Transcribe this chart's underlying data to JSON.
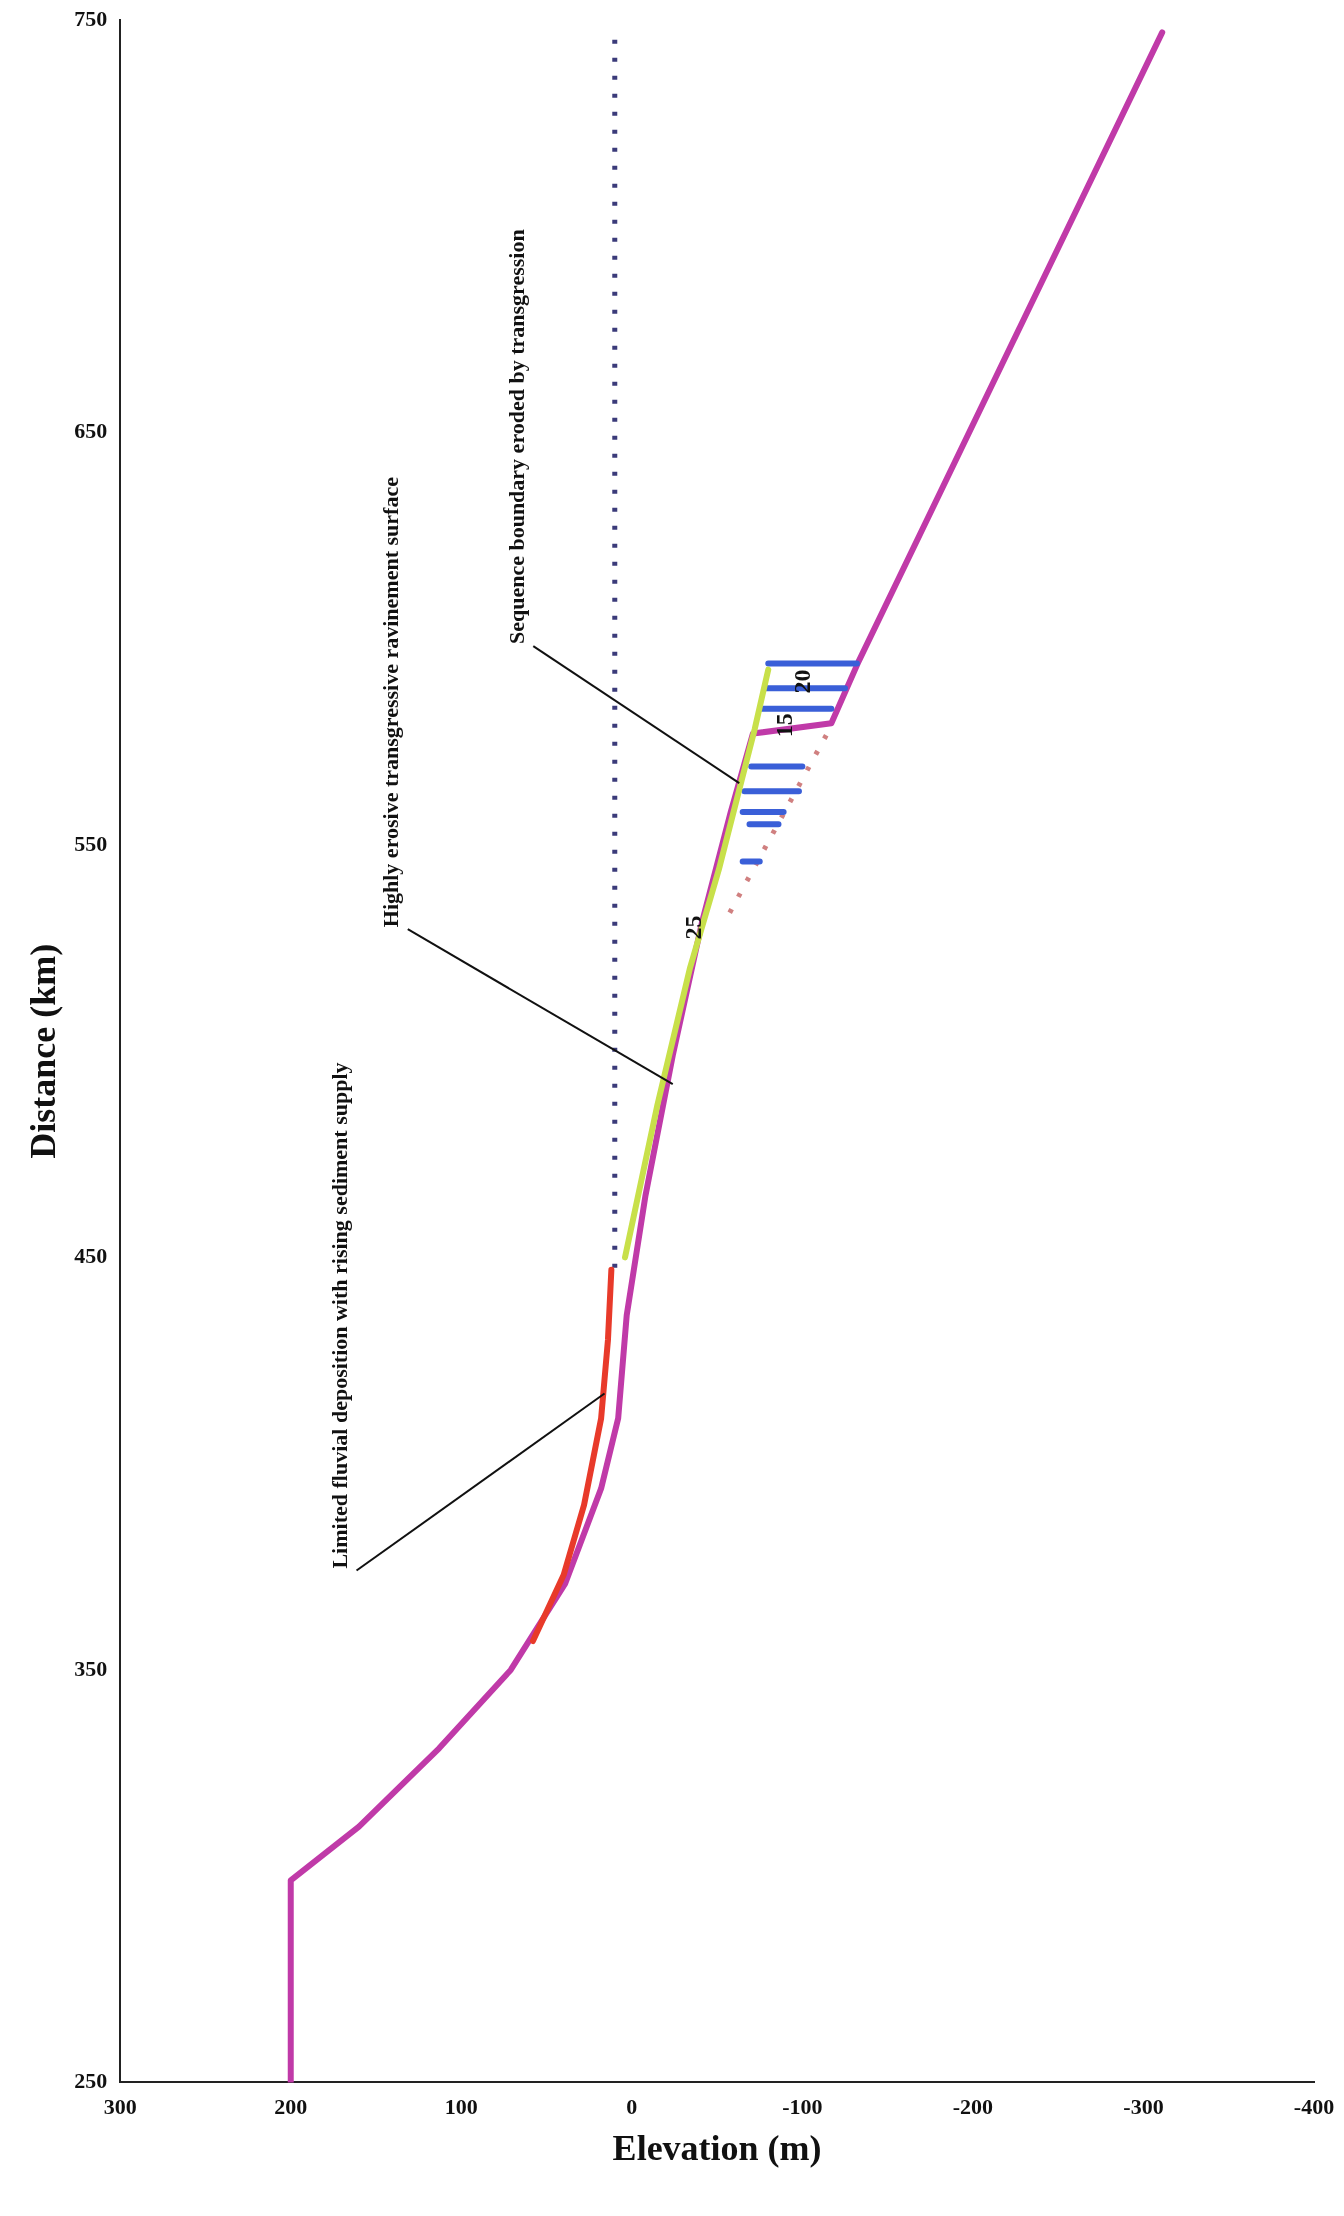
{
  "chart_data": {
    "type": "line",
    "xlabel": "Elevation (m)",
    "ylabel": "Distance (km)",
    "xlim": [
      300,
      -400
    ],
    "xticks": [
      300,
      200,
      100,
      0,
      -100,
      -200,
      -300,
      -400
    ],
    "ylim": [
      250,
      750
    ],
    "yticks": [
      250,
      350,
      450,
      550,
      650,
      750
    ],
    "grid": false,
    "legend": false,
    "marker": "none",
    "series": [
      {
        "color": "#c8e04a",
        "x": [
          -80,
          -72,
          -51,
          -34,
          -15,
          4
        ],
        "values": [
          592.5,
          578,
          544,
          520,
          487,
          450
        ]
      },
      {
        "color": "#e83a2a",
        "x": [
          12,
          14,
          18,
          28,
          40,
          58
        ],
        "values": [
          447,
          430,
          411,
          390,
          373,
          357
        ]
      },
      {
        "color": "#3a5fd8",
        "x": [
          -80,
          -132,
          null,
          -79,
          -125,
          null,
          -76,
          -117,
          null,
          -70,
          -100,
          null,
          -66,
          -98,
          null,
          -65,
          -89,
          null,
          -69,
          -86,
          null,
          -65,
          -75
        ],
        "values": [
          594,
          594,
          null,
          588,
          588,
          null,
          583,
          583,
          null,
          569,
          569,
          null,
          563,
          563,
          null,
          558,
          558,
          null,
          555,
          555,
          null,
          546,
          546
        ]
      },
      {
        "color": "#d08080",
        "line_style": "dotted",
        "x": [
          -114,
          -54
        ],
        "values": [
          576.6,
          531
        ]
      },
      {
        "color": "#3b3b7a",
        "line_style": "dotted",
        "x": [
          10,
          10
        ],
        "values": [
          447.5,
          745.4
        ]
      },
      {
        "color": "#c03aa8",
        "x": [
          200,
          200,
          160,
          113,
          71,
          39,
          18,
          8,
          3,
          -8,
          -24,
          -41,
          -58,
          -71,
          -117,
          -133,
          -311
        ],
        "values": [
          250,
          299,
          312,
          331,
          350,
          371,
          394,
          411,
          436,
          465,
          499,
          531,
          558,
          577,
          579.5,
          594.5,
          747
        ]
      }
    ],
    "annotations": [
      {
        "text": "Sequence boundary eroded by transgression",
        "x": -63,
        "y": 565
      },
      {
        "text": "Highly erosive transgressive ravinement surface",
        "x": -24,
        "y": 492
      },
      {
        "text": "Limited fluvial deposition with rising sediment supply",
        "x": 16,
        "y": 417
      },
      {
        "text": "20",
        "x": -101,
        "y": 589.6
      },
      {
        "text": "15",
        "x": -90,
        "y": 579
      },
      {
        "text": "25",
        "x": -37,
        "y": 530
      }
    ]
  }
}
